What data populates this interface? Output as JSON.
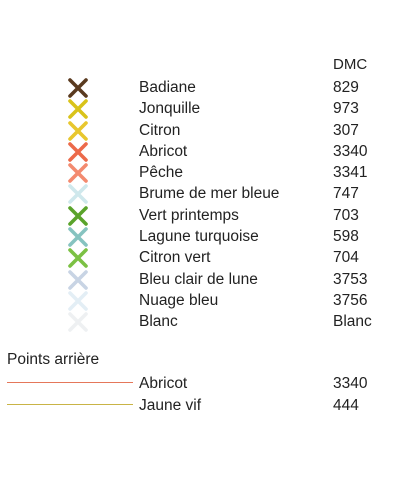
{
  "header": {
    "code_column": "DMC"
  },
  "stitches": [
    {
      "name": "Badiane",
      "code": "829",
      "color": "#5a3a1f",
      "icon": "cross-stitch-icon"
    },
    {
      "name": "Jonquille",
      "code": "973",
      "color": "#d9c31a",
      "icon": "cross-stitch-icon"
    },
    {
      "name": "Citron",
      "code": "307",
      "color": "#e8c72e",
      "icon": "cross-stitch-icon"
    },
    {
      "name": "Abricot",
      "code": "3340",
      "color": "#ec6a4a",
      "icon": "cross-stitch-icon"
    },
    {
      "name": "Pêche",
      "code": "3341",
      "color": "#f38a6f",
      "icon": "cross-stitch-icon"
    },
    {
      "name": "Brume de mer bleue",
      "code": "747",
      "color": "#cfe8ec",
      "icon": "cross-stitch-icon"
    },
    {
      "name": "Vert printemps",
      "code": "703",
      "color": "#5aa32b",
      "icon": "cross-stitch-icon"
    },
    {
      "name": "Lagune turquoise",
      "code": "598",
      "color": "#86c3c0",
      "icon": "cross-stitch-icon"
    },
    {
      "name": "Citron vert",
      "code": "704",
      "color": "#7cc144",
      "icon": "cross-stitch-icon"
    },
    {
      "name": "Bleu clair de lune",
      "code": "3753",
      "color": "#c8d4e4",
      "icon": "cross-stitch-icon"
    },
    {
      "name": "Nuage bleu",
      "code": "3756",
      "color": "#e3eef5",
      "icon": "cross-stitch-icon"
    },
    {
      "name": "Blanc",
      "code": "Blanc",
      "color": "#eef0f2",
      "icon": "cross-stitch-icon"
    }
  ],
  "backstitch": {
    "title": "Points arrière",
    "items": [
      {
        "name": "Abricot",
        "code": "3340",
        "color": "#e5775a"
      },
      {
        "name": "Jaune vif",
        "code": "444",
        "color": "#c9b446"
      }
    ]
  }
}
